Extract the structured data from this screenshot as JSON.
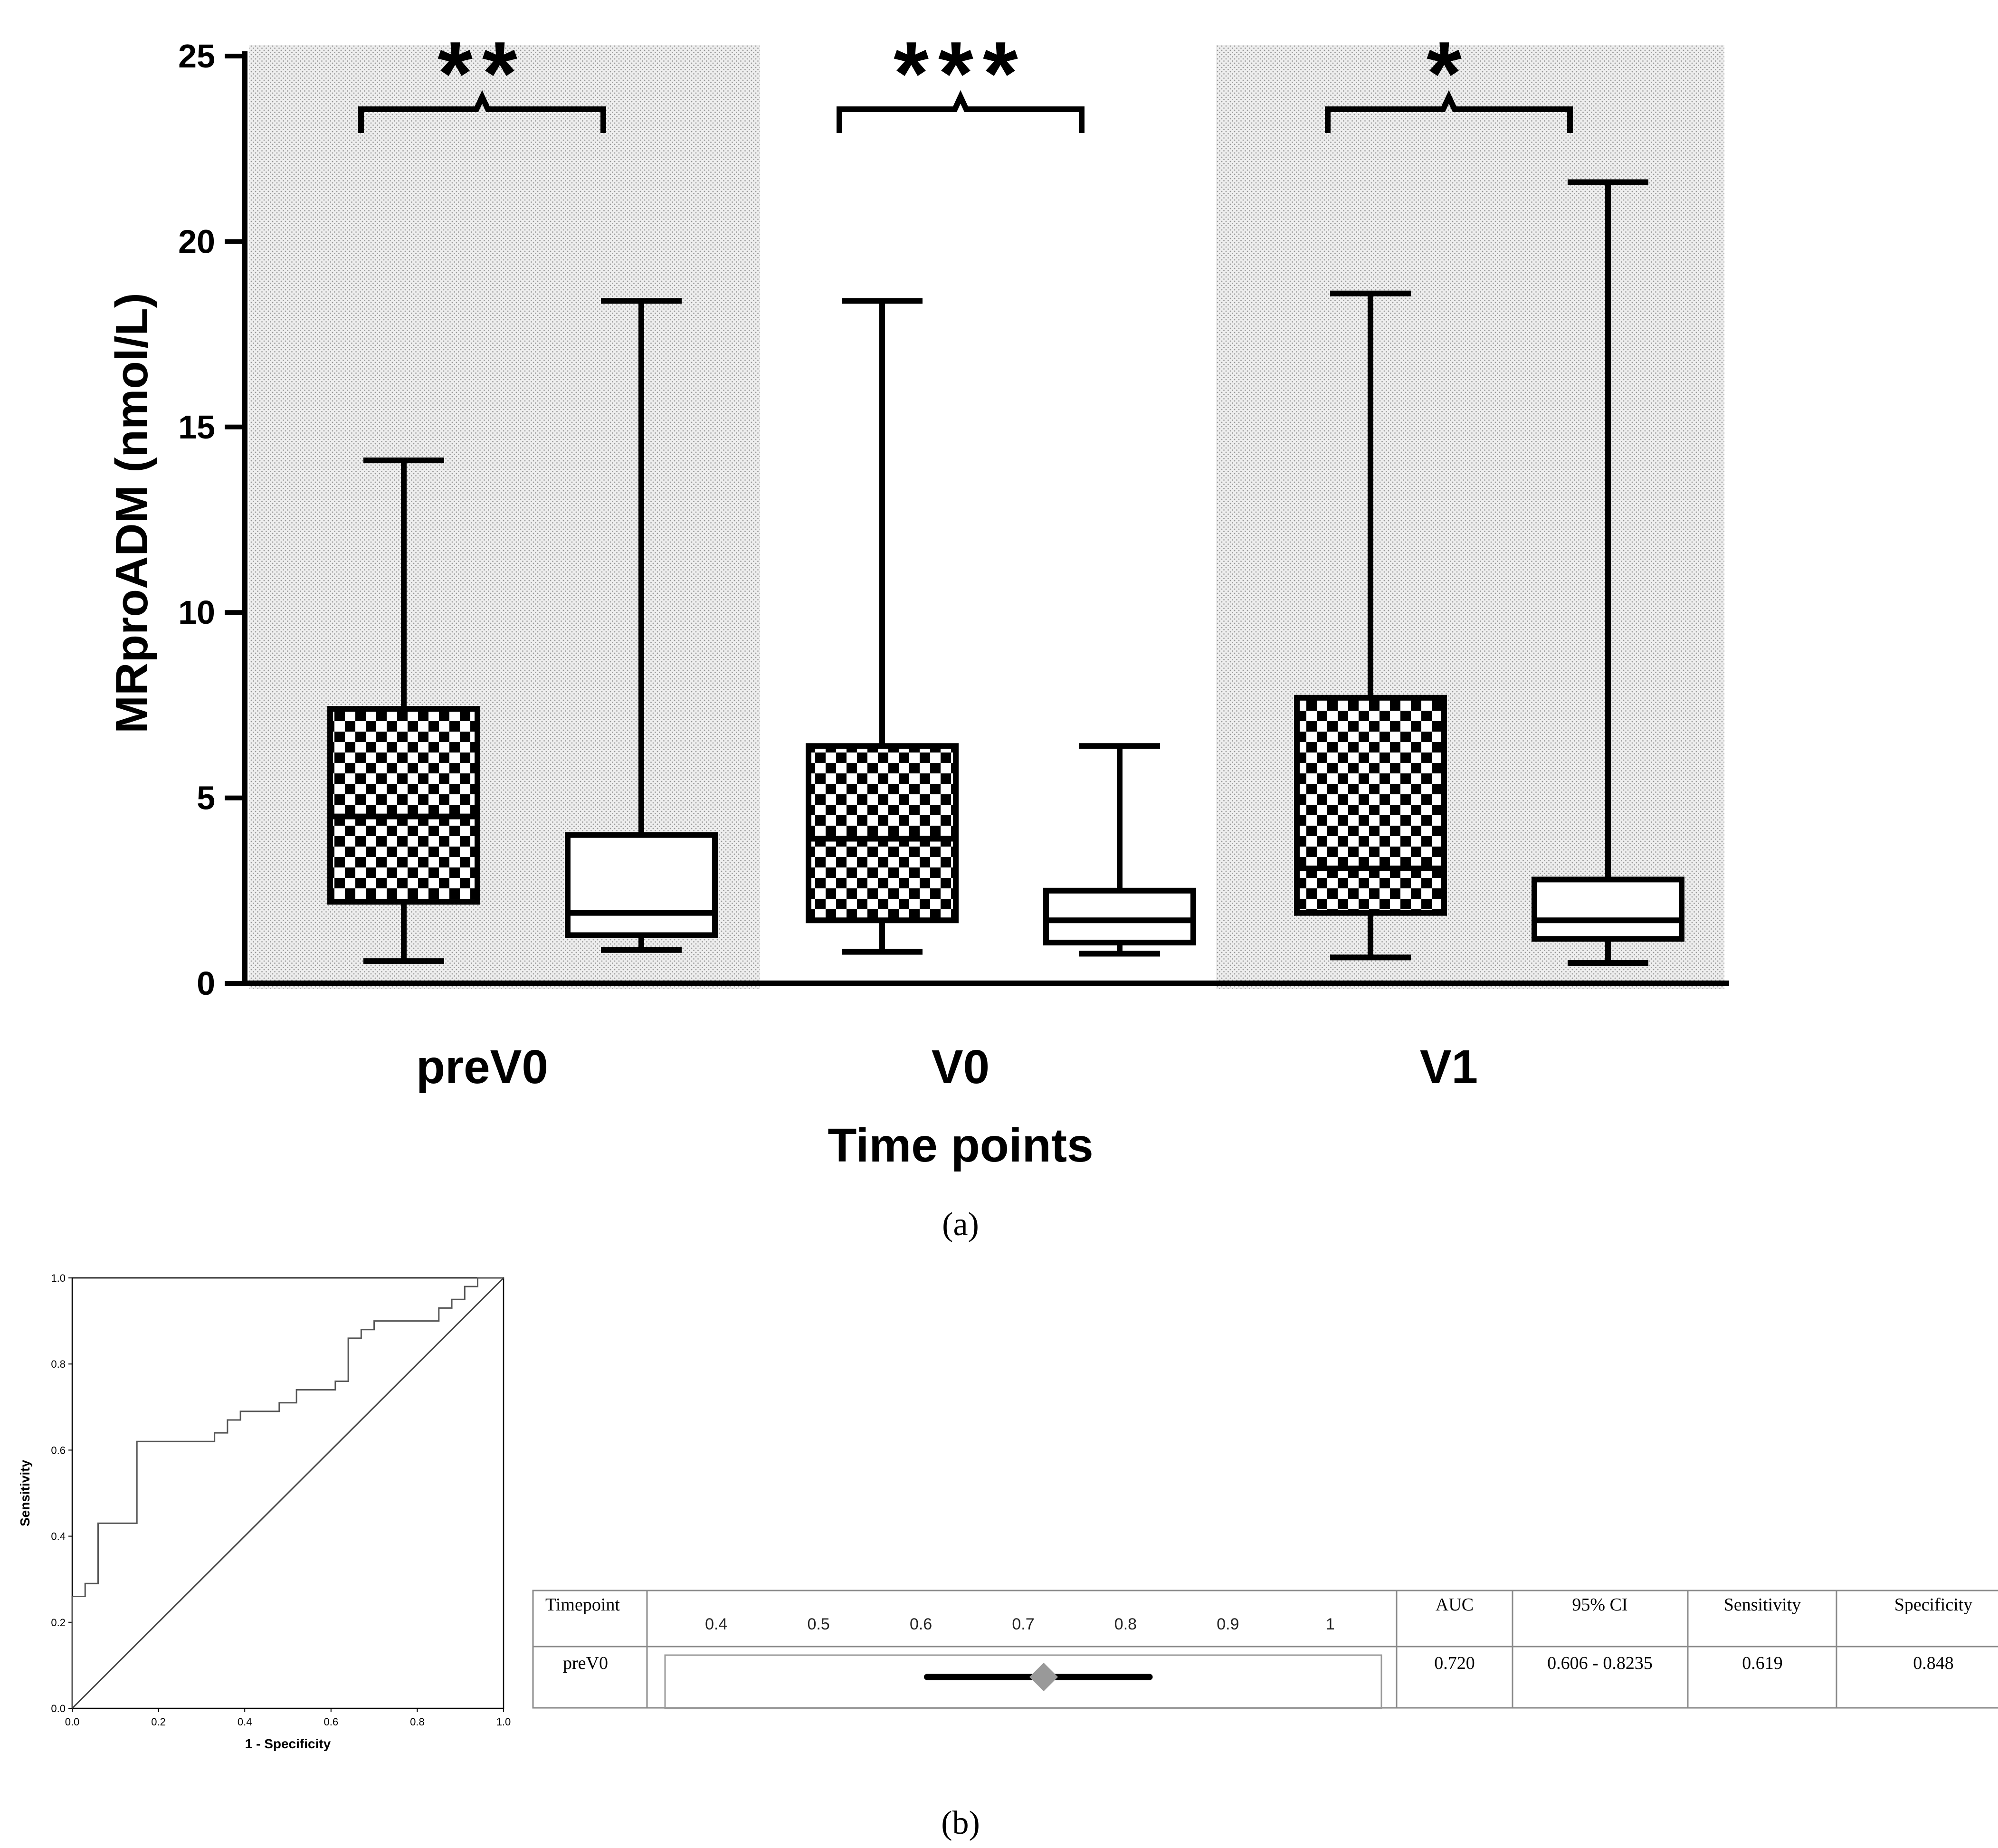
{
  "chart_data": [
    {
      "type": "box",
      "ylabel": "MRproADM (nmol/L)",
      "xlabel": "Time points",
      "ylim": [
        0,
        25
      ],
      "yticks": [
        0,
        5,
        10,
        15,
        20,
        25
      ],
      "caption": "(a)",
      "groups": [
        {
          "label": "preV0",
          "significance": "**",
          "shaded": true,
          "boxes": [
            {
              "pattern": "checkered",
              "min": 0.6,
              "q1": 2.2,
              "median": 4.5,
              "q3": 7.4,
              "max": 14.1
            },
            {
              "pattern": "white",
              "min": 0.9,
              "q1": 1.3,
              "median": 1.9,
              "q3": 4.0,
              "max": 18.4
            }
          ]
        },
        {
          "label": "V0",
          "significance": "***",
          "shaded": false,
          "boxes": [
            {
              "pattern": "checkered",
              "min": 0.85,
              "q1": 1.7,
              "median": 3.9,
              "q3": 6.4,
              "max": 18.4
            },
            {
              "pattern": "white",
              "min": 0.8,
              "q1": 1.1,
              "median": 1.7,
              "q3": 2.5,
              "max": 6.4
            }
          ]
        },
        {
          "label": "V1",
          "significance": "*",
          "shaded": true,
          "boxes": [
            {
              "pattern": "checkered",
              "min": 0.7,
              "q1": 1.9,
              "median": 3.1,
              "q3": 7.7,
              "max": 18.6
            },
            {
              "pattern": "white",
              "min": 0.55,
              "q1": 1.2,
              "median": 1.7,
              "q3": 2.8,
              "max": 21.6
            }
          ]
        }
      ]
    },
    {
      "type": "line",
      "title": "",
      "xlabel": "1 - Specificity",
      "ylabel": "Sensitivity",
      "xlim": [
        0,
        1
      ],
      "ylim": [
        0,
        1
      ],
      "xticks": [
        "0.0",
        "0.2",
        "0.4",
        "0.6",
        "0.8",
        "1.0"
      ],
      "yticks": [
        "0.0",
        "0.2",
        "0.4",
        "0.6",
        "0.8",
        "1.0"
      ],
      "series": [
        {
          "name": "ROC",
          "x": [
            0,
            0,
            0.03,
            0.03,
            0.06,
            0.06,
            0.15,
            0.15,
            0.33,
            0.33,
            0.36,
            0.36,
            0.39,
            0.39,
            0.48,
            0.48,
            0.52,
            0.52,
            0.61,
            0.61,
            0.64,
            0.64,
            0.67,
            0.67,
            0.7,
            0.7,
            0.85,
            0.85,
            0.88,
            0.88,
            0.91,
            0.91,
            0.94,
            0.94,
            1.0
          ],
          "y": [
            0,
            0.26,
            0.26,
            0.29,
            0.29,
            0.43,
            0.43,
            0.62,
            0.62,
            0.64,
            0.64,
            0.67,
            0.67,
            0.69,
            0.69,
            0.71,
            0.71,
            0.74,
            0.74,
            0.76,
            0.76,
            0.86,
            0.86,
            0.88,
            0.88,
            0.9,
            0.9,
            0.93,
            0.93,
            0.95,
            0.95,
            0.98,
            0.98,
            1.0,
            1.0
          ]
        },
        {
          "name": "Reference",
          "x": [
            0,
            1
          ],
          "y": [
            0,
            1
          ]
        }
      ],
      "caption": "(b)"
    },
    {
      "type": "table",
      "forest_axis_ticks": [
        "0.4",
        "0.5",
        "0.6",
        "0.7",
        "0.8",
        "0.9",
        "1"
      ],
      "forest_axis_range": [
        0.35,
        1.05
      ],
      "headers": {
        "timepoint": "Timepoint",
        "auc": "AUC",
        "ci": "95% CI",
        "sensitivity": "Sensitivity",
        "specificity": "Specificity"
      },
      "rows": [
        {
          "timepoint": "preV0",
          "auc": "0.720",
          "ci": "0.606 - 0.8235",
          "sensitivity": "0.619",
          "specificity": "0.848",
          "auc_value": 0.72,
          "ci_low": 0.606,
          "ci_high": 0.8235
        }
      ]
    }
  ],
  "colors": {
    "ink": "#000000",
    "shade": "#e6e6e6",
    "roc_line": "#555555",
    "forest_line": "#000000",
    "forest_marker": "#999999",
    "table_border": "#8a8a8a"
  }
}
